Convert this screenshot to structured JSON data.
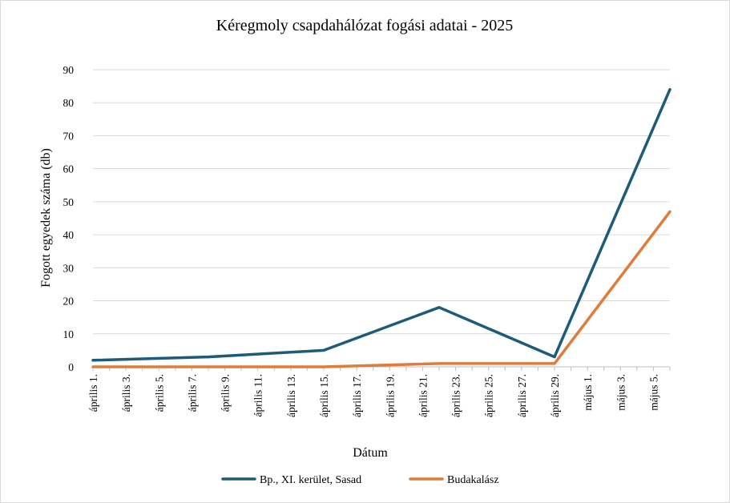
{
  "chart_data": {
    "type": "line",
    "title": "Kéregmoly csapdahálózat fogási adatai - 2025",
    "xlabel": "Dátum",
    "ylabel": "Fogott egyedek száma (db)",
    "ylim": [
      0,
      90
    ],
    "yticks": [
      0,
      10,
      20,
      30,
      40,
      50,
      60,
      70,
      80,
      90
    ],
    "categories": [
      "április 1.",
      "április 3.",
      "április 5.",
      "április 7.",
      "április 9.",
      "április 11.",
      "április 13.",
      "április 15.",
      "április 17.",
      "április 19.",
      "április 21.",
      "április 23.",
      "április 25.",
      "április 27.",
      "április 29.",
      "május 1.",
      "május 3.",
      "május 5."
    ],
    "day_offsets": [
      0,
      2,
      4,
      6,
      8,
      10,
      12,
      14,
      16,
      18,
      20,
      22,
      24,
      26,
      28,
      30,
      32,
      34
    ],
    "series": [
      {
        "name": "Bp., XI. kerület, Sasad",
        "color": "#1d5b79",
        "points": [
          {
            "day": 0,
            "value": 2
          },
          {
            "day": 7,
            "value": 3
          },
          {
            "day": 14,
            "value": 5
          },
          {
            "day": 21,
            "value": 18
          },
          {
            "day": 28,
            "value": 3
          },
          {
            "day": 35,
            "value": 84
          }
        ]
      },
      {
        "name": "Budakalász",
        "color": "#e07b39",
        "points": [
          {
            "day": 0,
            "value": 0
          },
          {
            "day": 7,
            "value": 0
          },
          {
            "day": 14,
            "value": 0
          },
          {
            "day": 21,
            "value": 1
          },
          {
            "day": 28,
            "value": 1
          },
          {
            "day": 35,
            "value": 47
          }
        ]
      }
    ],
    "grid": true,
    "legend_position": "bottom"
  }
}
